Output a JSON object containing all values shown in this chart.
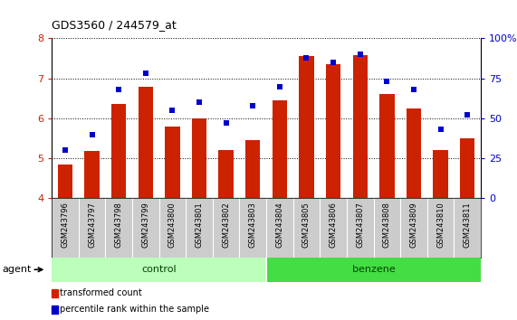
{
  "title": "GDS3560 / 244579_at",
  "samples": [
    "GSM243796",
    "GSM243797",
    "GSM243798",
    "GSM243799",
    "GSM243800",
    "GSM243801",
    "GSM243802",
    "GSM243803",
    "GSM243804",
    "GSM243805",
    "GSM243806",
    "GSM243807",
    "GSM243808",
    "GSM243809",
    "GSM243810",
    "GSM243811"
  ],
  "transformed_count": [
    4.85,
    5.18,
    6.35,
    6.8,
    5.8,
    6.0,
    5.2,
    5.45,
    6.45,
    7.55,
    7.35,
    7.58,
    6.6,
    6.25,
    5.2,
    5.5
  ],
  "percentile_rank": [
    30,
    40,
    68,
    78,
    55,
    60,
    47,
    58,
    70,
    88,
    85,
    90,
    73,
    68,
    43,
    52
  ],
  "groups": [
    "control",
    "control",
    "control",
    "control",
    "control",
    "control",
    "control",
    "control",
    "benzene",
    "benzene",
    "benzene",
    "benzene",
    "benzene",
    "benzene",
    "benzene",
    "benzene"
  ],
  "bar_color": "#cc2200",
  "dot_color": "#0000cc",
  "ylim_left": [
    4,
    8
  ],
  "ylim_right": [
    0,
    100
  ],
  "yticks_left": [
    4,
    5,
    6,
    7,
    8
  ],
  "yticks_right": [
    0,
    25,
    50,
    75,
    100
  ],
  "bar_width": 0.55,
  "n_control": 8,
  "n_benzene": 8,
  "control_color": "#bbffbb",
  "benzene_color": "#44dd44",
  "tick_bg_color": "#cccccc",
  "agent_label": "agent",
  "control_label": "control",
  "benzene_label": "benzene",
  "legend_transformed": "transformed count",
  "legend_percentile": "percentile rank within the sample"
}
